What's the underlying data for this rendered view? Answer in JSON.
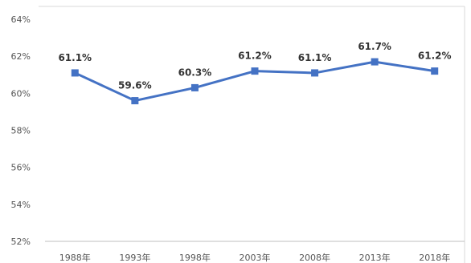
{
  "chart_data": {
    "type": "line",
    "title": "",
    "xlabel": "",
    "ylabel": "",
    "categories": [
      "1988年",
      "1993年",
      "1998年",
      "2003年",
      "2008年",
      "2013年",
      "2018年"
    ],
    "series": [
      {
        "values": [
          61.1,
          59.6,
          60.3,
          61.2,
          61.1,
          61.7,
          61.2
        ],
        "labels": [
          "61.1%",
          "59.6%",
          "60.3%",
          "61.2%",
          "61.1%",
          "61.7%",
          "61.2%"
        ],
        "color": "#4472C4"
      }
    ],
    "ylim": [
      52,
      64
    ],
    "yticks": [
      52,
      54,
      56,
      58,
      60,
      62,
      64
    ],
    "ytick_labels": [
      "52%",
      "54%",
      "56%",
      "58%",
      "60%",
      "62%",
      "64%"
    ],
    "grid": false,
    "legend": "none"
  }
}
